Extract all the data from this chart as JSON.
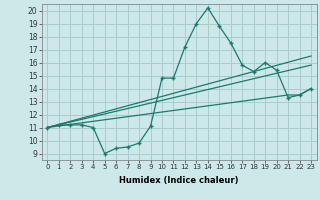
{
  "xlabel": "Humidex (Indice chaleur)",
  "bg_color": "#cce8e8",
  "line_color": "#1a7a6e",
  "grid_color": "#aacccc",
  "xlim": [
    -0.5,
    23.5
  ],
  "ylim": [
    8.5,
    20.5
  ],
  "xticks": [
    0,
    1,
    2,
    3,
    4,
    5,
    6,
    7,
    8,
    9,
    10,
    11,
    12,
    13,
    14,
    15,
    16,
    17,
    18,
    19,
    20,
    21,
    22,
    23
  ],
  "yticks": [
    9,
    10,
    11,
    12,
    13,
    14,
    15,
    16,
    17,
    18,
    19,
    20
  ],
  "curve_x": [
    0,
    1,
    2,
    3,
    4,
    5,
    6,
    7,
    8,
    9,
    10,
    11,
    12,
    13,
    14,
    15,
    16,
    17,
    18,
    19,
    20,
    21,
    22,
    23
  ],
  "curve_y": [
    11.0,
    11.2,
    11.2,
    11.2,
    11.0,
    9.0,
    9.4,
    9.5,
    9.8,
    11.1,
    14.8,
    14.8,
    17.2,
    19.0,
    20.2,
    18.8,
    17.5,
    15.8,
    15.3,
    16.0,
    15.4,
    13.3,
    13.5,
    14.0
  ],
  "line2_x": [
    0,
    21,
    22,
    23
  ],
  "line2_y": [
    11.0,
    13.5,
    13.5,
    14.0
  ],
  "line3_x": [
    0,
    23
  ],
  "line3_y": [
    11.0,
    15.8
  ],
  "line4_x": [
    0,
    23
  ],
  "line4_y": [
    11.0,
    16.5
  ]
}
